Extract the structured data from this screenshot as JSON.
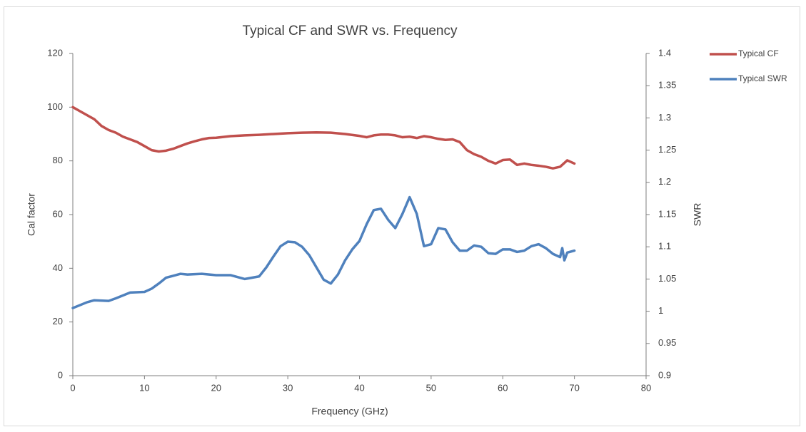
{
  "chart_data": {
    "type": "line",
    "title": "Typical CF and SWR vs. Frequency",
    "x_label": "Frequency (GHz)",
    "y_label": "Cal factor",
    "y2_label": "SWR",
    "xlim": [
      0,
      80
    ],
    "xticks": [
      0,
      10,
      20,
      30,
      40,
      50,
      60,
      70,
      80
    ],
    "ylim": [
      0,
      120
    ],
    "yticks": [
      0,
      20,
      40,
      60,
      80,
      100,
      120
    ],
    "y2lim": [
      0.9,
      1.4
    ],
    "y2ticks": [
      0.9,
      0.95,
      1,
      1.05,
      1.1,
      1.15,
      1.2,
      1.25,
      1.3,
      1.35,
      1.4
    ],
    "grid": false,
    "legend": "right",
    "series": [
      {
        "name": "Typical CF",
        "color": "#c0504d",
        "x": [
          0,
          1,
          2,
          3,
          4,
          5,
          6,
          7,
          8,
          9,
          10,
          11,
          12,
          13,
          14,
          15,
          16,
          17,
          18,
          19,
          20,
          22,
          24,
          26,
          28,
          30,
          32,
          34,
          36,
          38,
          40,
          41,
          42,
          43,
          44,
          45,
          46,
          47,
          48,
          49,
          50,
          51,
          52,
          53,
          54,
          55,
          56,
          57,
          58,
          59,
          60,
          61,
          62,
          63,
          64,
          65,
          66,
          67,
          68,
          69,
          70
        ],
        "values": [
          100,
          98.5,
          97,
          95.5,
          93,
          91.5,
          90.5,
          89,
          88,
          87,
          85.5,
          84,
          83.5,
          83.8,
          84.5,
          85.5,
          86.5,
          87.3,
          88,
          88.5,
          88.6,
          89.2,
          89.5,
          89.7,
          90,
          90.3,
          90.5,
          90.6,
          90.5,
          90,
          89.3,
          88.8,
          89.5,
          89.8,
          89.8,
          89.5,
          88.8,
          89,
          88.5,
          89.2,
          88.8,
          88.2,
          87.8,
          88,
          87,
          84,
          82.5,
          81.5,
          80,
          79,
          80.3,
          80.5,
          78.5,
          79,
          78.5,
          78.2,
          77.8,
          77.2,
          77.8,
          80.2,
          79
        ]
      },
      {
        "name": "Typical SWR",
        "color": "#4f81bd",
        "axis": "y2",
        "x": [
          0,
          2,
          3,
          5,
          6,
          8,
          10,
          11,
          12,
          13,
          14,
          15,
          16,
          18,
          20,
          22,
          24,
          26,
          27,
          28,
          29,
          30,
          31,
          32,
          33,
          34,
          35,
          36,
          37,
          38,
          39,
          40,
          41,
          42,
          43,
          44,
          45,
          46,
          47,
          48,
          49,
          50,
          51,
          52,
          53,
          54,
          55,
          56,
          57,
          58,
          59,
          60,
          61,
          62,
          63,
          64,
          65,
          66,
          67,
          68,
          68.3,
          68.6,
          69,
          70
        ],
        "values": [
          1.005,
          1.014,
          1.017,
          1.016,
          1.02,
          1.029,
          1.03,
          1.035,
          1.043,
          1.052,
          1.055,
          1.058,
          1.057,
          1.058,
          1.056,
          1.056,
          1.05,
          1.054,
          1.068,
          1.085,
          1.101,
          1.108,
          1.107,
          1.1,
          1.087,
          1.068,
          1.049,
          1.043,
          1.057,
          1.079,
          1.096,
          1.109,
          1.135,
          1.157,
          1.159,
          1.142,
          1.129,
          1.151,
          1.177,
          1.151,
          1.101,
          1.104,
          1.129,
          1.127,
          1.107,
          1.094,
          1.094,
          1.102,
          1.1,
          1.09,
          1.089,
          1.096,
          1.096,
          1.092,
          1.094,
          1.101,
          1.104,
          1.098,
          1.089,
          1.084,
          1.098,
          1.079,
          1.091,
          1.094
        ]
      }
    ]
  }
}
